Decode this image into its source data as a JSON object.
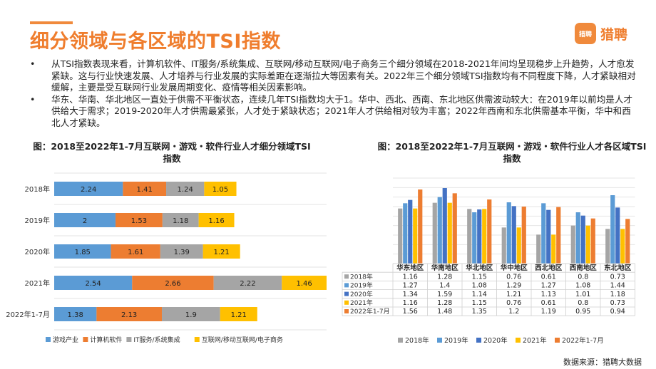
{
  "header": {
    "title": "细分领域与各区域的TSI指数",
    "logo_badge": "猎聘",
    "logo_text": "猎聘"
  },
  "bullets": [
    "从TSI指数表现来看，计算机软件、IT服务/系统集成、互联网/移动互联网/电子商务三个细分领域在2018-2021年间均呈现稳步上升趋势，人才愈发紧缺。这与行业快速发展、人才培养与行业发展的实际差距在逐渐拉大等因素有关。2022年三个细分领域TSI指数均有不同程度下降，人才紧缺相对缓解，主要是受互联网行业发展周期变化、疫情等相关因素影响。",
    "华东、华南、华北地区一直处于供需不平衡状态，连续几年TSI指数均大于1。华中、西北、西南、东北地区供需波动较大：在2019年以前均是人才供给大于需求；2019-2020年人才供需最紧张，人才处于紧缺状态；2021年人才供给相对较为丰富；2022年西南和东北供需基本平衡，华中和西北人才紧缺。"
  ],
  "source": "数据来源：猎聘大数据",
  "chart_data": [
    {
      "type": "bar",
      "orientation": "horizontal",
      "stacked": true,
      "title": "图：2018至2022年1-7月互联网・游戏・软件行业人才细分领域TSI指数",
      "categories": [
        "2018年",
        "2019年",
        "2020年",
        "2021年",
        "2022年1-7月"
      ],
      "series": [
        {
          "name": "游戏产业",
          "color": "#5b9bd5",
          "values": [
            2.24,
            2,
            1.85,
            2.54,
            1.38
          ]
        },
        {
          "name": "计算机软件",
          "color": "#ed7d31",
          "values": [
            1.41,
            1.53,
            1.61,
            2.66,
            2.13
          ]
        },
        {
          "name": "IT服务/系统集成",
          "color": "#a5a5a5",
          "values": [
            1.24,
            1.18,
            1.39,
            2.22,
            1.9
          ]
        },
        {
          "name": "互联网/移动互联网/电子商务",
          "color": "#ffc000",
          "values": [
            1.05,
            1.16,
            1.21,
            1.46,
            1.21
          ]
        }
      ],
      "legend": "bottom",
      "grid": true
    },
    {
      "type": "bar",
      "title": "图：2018至2022年1-7月互联网・游戏・软件行业人才各区域TSI指数",
      "categories": [
        "华东地区",
        "华南地区",
        "华北地区",
        "华中地区",
        "西北地区",
        "西南地区",
        "东北地区"
      ],
      "series": [
        {
          "name": "2018年",
          "color": "#a5a5a5",
          "values": [
            1.16,
            1.28,
            1.15,
            0.76,
            0.61,
            0.8,
            0.73
          ]
        },
        {
          "name": "2019年",
          "color": "#5b9bd5",
          "values": [
            1.27,
            1.4,
            1.08,
            1.29,
            1.27,
            1.08,
            1.44
          ]
        },
        {
          "name": "2020年",
          "color": "#4472c4",
          "values": [
            1.34,
            1.59,
            1.14,
            1.21,
            1.13,
            1.01,
            1.18
          ]
        },
        {
          "name": "2021年",
          "color": "#ffc000",
          "values": [
            1.16,
            1.28,
            1.15,
            0.76,
            0.61,
            0.8,
            0.73
          ]
        },
        {
          "name": "2022年1-7月",
          "color": "#ed7d31",
          "values": [
            1.56,
            1.48,
            1.35,
            1.2,
            1.19,
            0.95,
            0.94
          ]
        }
      ],
      "ylim": [
        0,
        1.8
      ],
      "grid": true,
      "legend": "bottom",
      "data_table": true
    }
  ]
}
